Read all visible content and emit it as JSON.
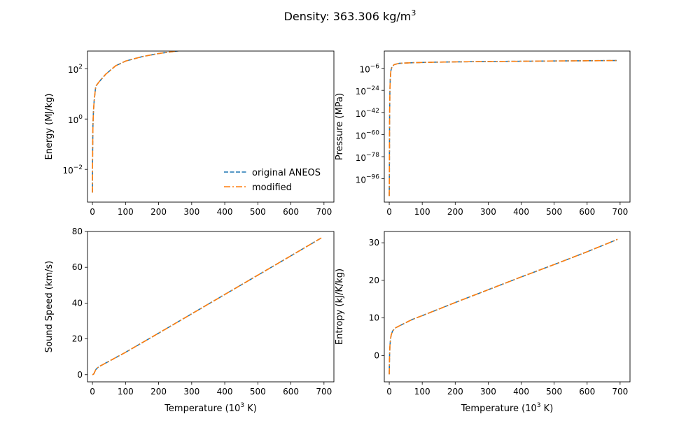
{
  "figure": {
    "title_main": "Density: 363.306 kg/m",
    "title_sup": "3"
  },
  "legend": {
    "entries": [
      "original ANEOS",
      "modified"
    ]
  },
  "colors": {
    "original": "#1f77b4",
    "modified": "#ff7f0e",
    "axes": "#000000"
  },
  "chart_data": [
    {
      "type": "line",
      "ylabel": "Energy (MJ/kg)",
      "xlabel": "",
      "yscale": "log",
      "xlim": [
        -15,
        730
      ],
      "ylim_exp": [
        -3.3,
        2.7
      ],
      "xticks": [
        0,
        100,
        200,
        300,
        400,
        500,
        600,
        700
      ],
      "yticks": [
        {
          "exp": -2,
          "base": "10",
          "sup": "−2"
        },
        {
          "exp": 0,
          "base": "10",
          "sup": "0"
        },
        {
          "exp": 2,
          "base": "10",
          "sup": "2"
        }
      ],
      "legend_position": "lower-right",
      "series": [
        {
          "name": "original ANEOS",
          "x": [
            0.001,
            0.3,
            0.8,
            1.5,
            3,
            5,
            8,
            10,
            20,
            40,
            70,
            100,
            150,
            200,
            300,
            400,
            500,
            600,
            692
          ],
          "y": [
            0.0012,
            0.02,
            0.12,
            0.6,
            2,
            5,
            12,
            20,
            30,
            60,
            130,
            200,
            300,
            400,
            600,
            800,
            1000,
            1250,
            1450
          ]
        },
        {
          "name": "modified",
          "x": [
            0.001,
            0.3,
            0.8,
            1.5,
            3,
            5,
            8,
            10,
            20,
            40,
            70,
            100,
            150,
            200,
            300,
            400,
            500,
            600,
            692
          ],
          "y": [
            0.0012,
            0.02,
            0.12,
            0.6,
            2,
            5,
            12,
            20,
            30,
            60,
            130,
            200,
            300,
            400,
            600,
            800,
            1000,
            1250,
            1450
          ]
        }
      ]
    },
    {
      "type": "line",
      "ylabel": "Pressure (MPa)",
      "xlabel": "",
      "yscale": "log",
      "xlim": [
        -15,
        730
      ],
      "ylim_exp": [
        -115,
        8
      ],
      "xticks": [
        0,
        100,
        200,
        300,
        400,
        500,
        600,
        700
      ],
      "yticks": [
        {
          "exp": -96,
          "base": "10",
          "sup": "−96"
        },
        {
          "exp": -78,
          "base": "10",
          "sup": "−78"
        },
        {
          "exp": -60,
          "base": "10",
          "sup": "−60"
        },
        {
          "exp": -42,
          "base": "10",
          "sup": "−42"
        },
        {
          "exp": -24,
          "base": "10",
          "sup": "−24"
        },
        {
          "exp": -6,
          "base": "10",
          "sup": "−6"
        }
      ],
      "series": [
        {
          "name": "original ANEOS",
          "x": [
            0.001,
            0.3,
            0.5,
            0.8,
            1,
            1.5,
            2,
            3,
            5,
            8,
            15,
            30,
            70,
            150,
            300,
            500,
            692
          ],
          "exp": [
            -110,
            -100,
            -85,
            -65,
            -50,
            -35,
            -25,
            -15,
            -8,
            -5,
            -3,
            -2,
            -1.5,
            -1,
            -0.5,
            -0.1,
            0.3
          ]
        },
        {
          "name": "modified",
          "x": [
            0.001,
            0.3,
            0.5,
            0.8,
            1,
            1.5,
            2,
            3,
            5,
            8,
            15,
            30,
            70,
            150,
            300,
            500,
            692
          ],
          "exp": [
            -110,
            -100,
            -85,
            -65,
            -50,
            -35,
            -25,
            -15,
            -8,
            -5,
            -3,
            -2,
            -1.5,
            -1,
            -0.5,
            -0.1,
            0.3
          ]
        }
      ]
    },
    {
      "type": "line",
      "ylabel": "Sound Speed (km/s)",
      "xlabel": "Temperature (10",
      "xlabel_sup": "3",
      "xlabel_tail": " K)",
      "yscale": "linear",
      "xlim": [
        -15,
        730
      ],
      "ylim": [
        -4,
        80
      ],
      "xticks": [
        0,
        100,
        200,
        300,
        400,
        500,
        600,
        700
      ],
      "yticks": [
        0,
        20,
        40,
        60,
        80
      ],
      "series": [
        {
          "name": "original ANEOS",
          "x": [
            0,
            3,
            5,
            8,
            10,
            15,
            20,
            40,
            70,
            100,
            200,
            300,
            400,
            500,
            600,
            692
          ],
          "y": [
            0,
            0.2,
            0.8,
            2.0,
            2.8,
            3.8,
            4.5,
            6.5,
            9.5,
            12.5,
            23.2,
            34.0,
            44.8,
            55.6,
            66.4,
            76.4
          ]
        },
        {
          "name": "modified",
          "x": [
            0,
            3,
            5,
            8,
            10,
            15,
            20,
            40,
            70,
            100,
            200,
            300,
            400,
            500,
            600,
            692
          ],
          "y": [
            0,
            0.2,
            0.8,
            2.0,
            2.8,
            3.8,
            4.5,
            6.5,
            9.5,
            12.5,
            23.2,
            34.0,
            44.8,
            55.6,
            66.4,
            76.4
          ]
        }
      ]
    },
    {
      "type": "line",
      "ylabel": "Entropy (kJ/K/kg)",
      "xlabel": "Temperature (10",
      "xlabel_sup": "3",
      "xlabel_tail": " K)",
      "yscale": "linear",
      "xlim": [
        -15,
        730
      ],
      "ylim": [
        -7,
        33
      ],
      "xticks": [
        0,
        100,
        200,
        300,
        400,
        500,
        600,
        700
      ],
      "yticks": [
        0,
        10,
        20,
        30
      ],
      "series": [
        {
          "name": "original ANEOS",
          "x": [
            0,
            0.5,
            1,
            2,
            4,
            6,
            10,
            15,
            20,
            40,
            70,
            100,
            200,
            300,
            400,
            500,
            600,
            692
          ],
          "y": [
            -5,
            -2,
            0,
            2.5,
            4.5,
            5.5,
            6.5,
            7.0,
            7.4,
            8.3,
            9.6,
            10.6,
            14.1,
            17.5,
            20.9,
            24.2,
            27.6,
            30.9
          ]
        },
        {
          "name": "modified",
          "x": [
            0,
            0.5,
            1,
            2,
            4,
            6,
            10,
            15,
            20,
            40,
            70,
            100,
            200,
            300,
            400,
            500,
            600,
            692
          ],
          "y": [
            -5,
            -2,
            0,
            2.5,
            4.5,
            5.5,
            6.5,
            7.0,
            7.4,
            8.3,
            9.6,
            10.6,
            14.1,
            17.5,
            20.9,
            24.2,
            27.6,
            30.9
          ]
        }
      ]
    }
  ]
}
